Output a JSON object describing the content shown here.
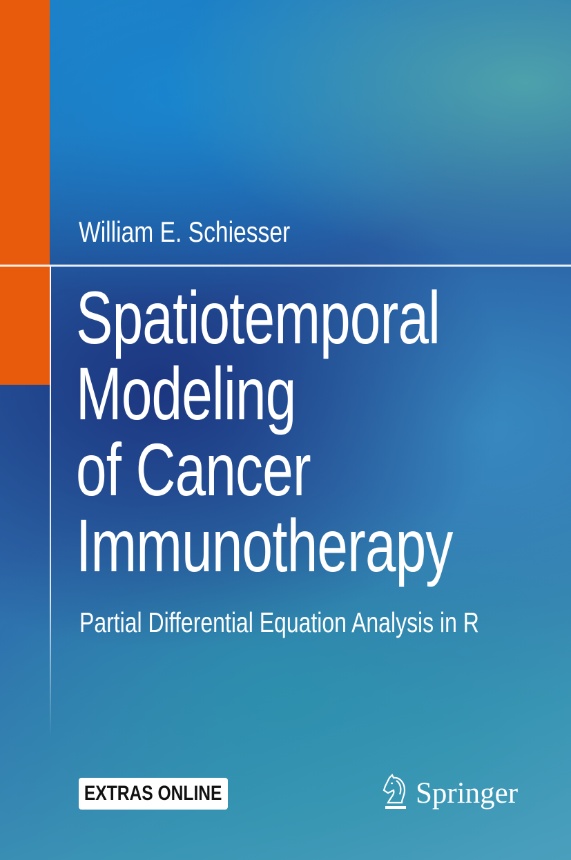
{
  "author": "William E. Schiesser",
  "title_lines": [
    "Spatiotemporal",
    "Modeling",
    "of Cancer",
    "Immunotherapy"
  ],
  "subtitle": "Partial Differential Equation Analysis in R",
  "badge": "EXTRAS ONLINE",
  "publisher": {
    "name": "Springer",
    "logo_icon": "knight-horse-icon"
  },
  "colors": {
    "accent_orange": "#e85a0c",
    "background_blue": "#2a63a8",
    "text": "#ffffff"
  }
}
